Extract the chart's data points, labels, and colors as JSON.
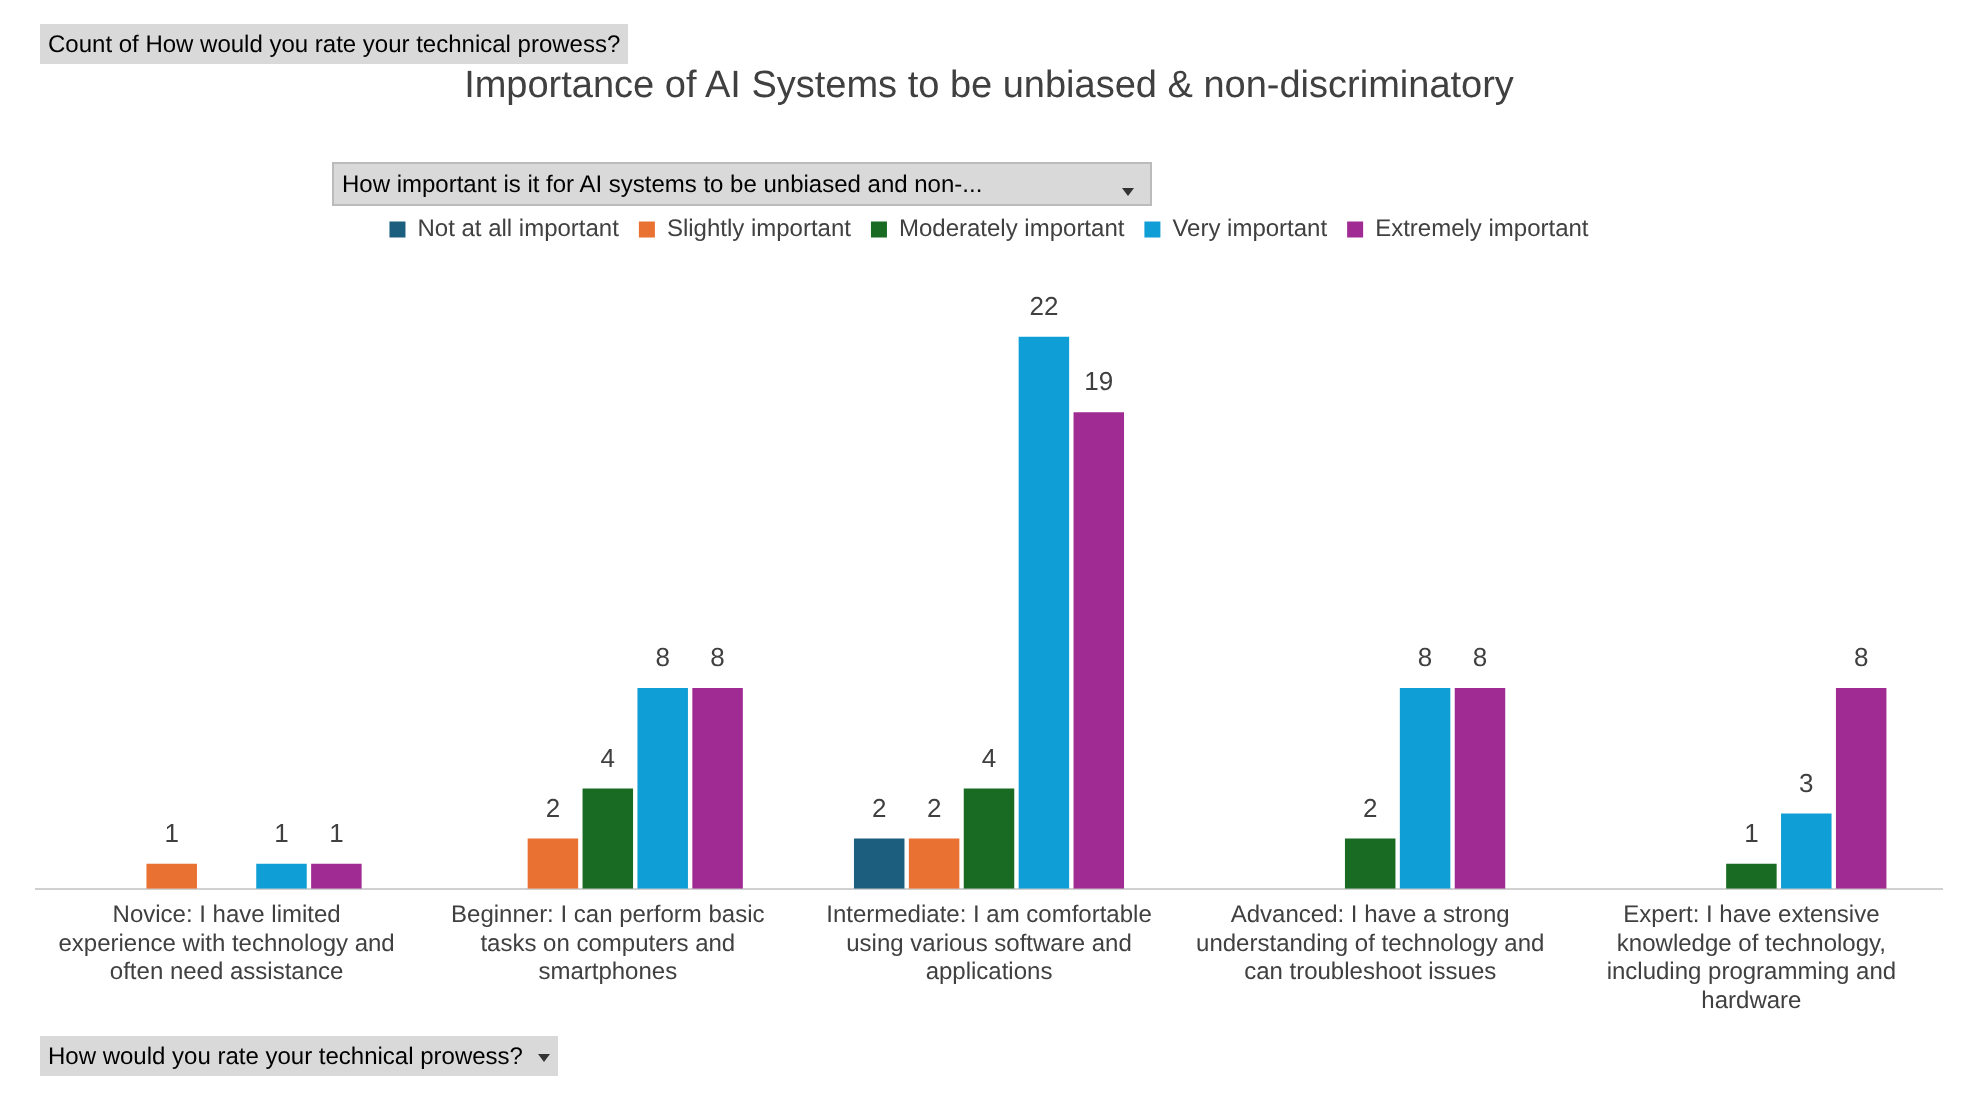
{
  "chart_data": {
    "type": "bar",
    "title": "Importance of AI Systems to be unbiased & non-discriminatory",
    "legend_title": "How important is it for AI systems to be unbiased and non-...",
    "annotations": [
      "Count of How would you rate your technical prowess?",
      "How would you rate your technical prowess?"
    ],
    "categories": [
      "Novice: I have limited experience with technology and often need assistance",
      "Beginner: I can perform basic tasks on computers and smartphones",
      "Intermediate: I am comfortable using various software and applications",
      "Advanced: I have a strong understanding of technology and can troubleshoot issues",
      "Expert: I have extensive knowledge of technology, including programming and hardware"
    ],
    "series": [
      {
        "name": "Not at all important",
        "color": "#1b5e7e",
        "values": [
          null,
          null,
          2,
          null,
          null
        ]
      },
      {
        "name": "Slightly important",
        "color": "#e97132",
        "values": [
          1,
          2,
          2,
          null,
          null
        ]
      },
      {
        "name": "Moderately important",
        "color": "#196b24",
        "values": [
          null,
          4,
          4,
          2,
          1
        ]
      },
      {
        "name": "Very important",
        "color": "#0f9ed5",
        "values": [
          1,
          8,
          22,
          8,
          3
        ]
      },
      {
        "name": "Extremely important",
        "color": "#a02b93",
        "values": [
          1,
          8,
          19,
          8,
          8
        ]
      }
    ],
    "data_labels": true,
    "legend": "top",
    "grid": false,
    "tick_labels": "x"
  }
}
